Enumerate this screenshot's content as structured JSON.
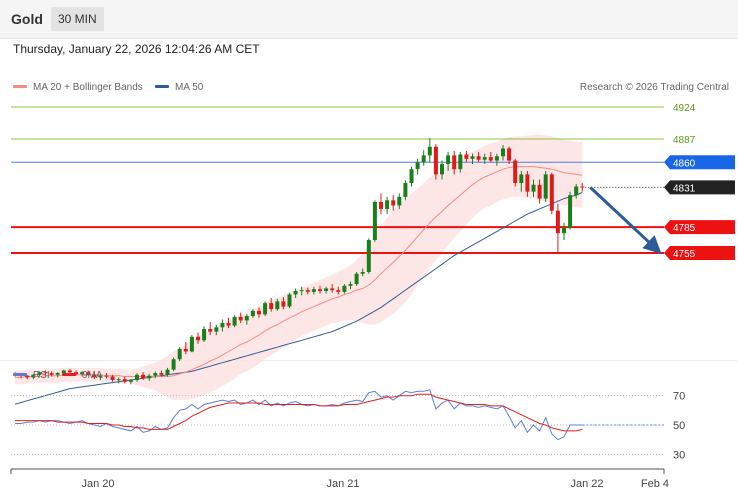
{
  "header": {
    "symbol": "Gold",
    "timeframe": "30 MIN"
  },
  "timestamp": "Thursday, January 22, 2026 12:04:26 AM CET",
  "legend": {
    "ma20": {
      "label": "MA 20 + Bollinger Bands",
      "color": "#f28b82"
    },
    "ma50": {
      "label": "MA 50",
      "color": "#2d5c9a"
    },
    "rsi": {
      "label": "RSI",
      "color": "#5b7fd6"
    },
    "rsi_ma": {
      "label": "9MA",
      "color": "#e02020"
    }
  },
  "copyright": "Research © 2026 Trading Central",
  "chart_data": [
    {
      "type": "candlestick",
      "title": "Gold",
      "timeframe": "30 MIN",
      "x_ticks": [
        "Jan 20",
        "Jan 21",
        "Jan 22",
        "Feb 4"
      ],
      "price_range": [
        4572,
        4935
      ],
      "last_price": 4831,
      "candles": [
        [
          4615,
          4617,
          4612,
          4614
        ],
        [
          4614,
          4616,
          4610,
          4613
        ],
        [
          4613,
          4614,
          4609,
          4611
        ],
        [
          4611,
          4615,
          4609,
          4614
        ],
        [
          4614,
          4618,
          4612,
          4617
        ],
        [
          4617,
          4619,
          4614,
          4616
        ],
        [
          4616,
          4618,
          4612,
          4614
        ],
        [
          4614,
          4617,
          4611,
          4616
        ],
        [
          4616,
          4620,
          4615,
          4619
        ],
        [
          4619,
          4621,
          4615,
          4617
        ],
        [
          4617,
          4619,
          4613,
          4615
        ],
        [
          4615,
          4618,
          4612,
          4617
        ],
        [
          4617,
          4619,
          4613,
          4614
        ],
        [
          4614,
          4616,
          4609,
          4611
        ],
        [
          4611,
          4614,
          4608,
          4613
        ],
        [
          4613,
          4616,
          4610,
          4612
        ],
        [
          4612,
          4614,
          4606,
          4608
        ],
        [
          4608,
          4611,
          4604,
          4609
        ],
        [
          4609,
          4612,
          4604,
          4606
        ],
        [
          4606,
          4609,
          4603,
          4608
        ],
        [
          4608,
          4616,
          4606,
          4614
        ],
        [
          4614,
          4617,
          4608,
          4610
        ],
        [
          4610,
          4615,
          4607,
          4613
        ],
        [
          4613,
          4618,
          4610,
          4616
        ],
        [
          4616,
          4619,
          4612,
          4614
        ],
        [
          4614,
          4622,
          4612,
          4620
        ],
        [
          4620,
          4634,
          4618,
          4632
        ],
        [
          4632,
          4646,
          4630,
          4644
        ],
        [
          4644,
          4652,
          4638,
          4641
        ],
        [
          4641,
          4660,
          4640,
          4658
        ],
        [
          4658,
          4663,
          4650,
          4654
        ],
        [
          4654,
          4670,
          4652,
          4667
        ],
        [
          4667,
          4675,
          4660,
          4664
        ],
        [
          4664,
          4672,
          4660,
          4669
        ],
        [
          4669,
          4678,
          4664,
          4674
        ],
        [
          4674,
          4680,
          4668,
          4671
        ],
        [
          4671,
          4683,
          4669,
          4681
        ],
        [
          4681,
          4686,
          4674,
          4677
        ],
        [
          4677,
          4684,
          4672,
          4682
        ],
        [
          4682,
          4690,
          4680,
          4688
        ],
        [
          4688,
          4692,
          4680,
          4684
        ],
        [
          4684,
          4699,
          4682,
          4697
        ],
        [
          4697,
          4703,
          4687,
          4690
        ],
        [
          4690,
          4702,
          4688,
          4699
        ],
        [
          4699,
          4704,
          4690,
          4693
        ],
        [
          4693,
          4709,
          4691,
          4707
        ],
        [
          4707,
          4714,
          4703,
          4711
        ],
        [
          4711,
          4716,
          4706,
          4712
        ],
        [
          4712,
          4715,
          4707,
          4710
        ],
        [
          4710,
          4716,
          4707,
          4713
        ],
        [
          4713,
          4717,
          4708,
          4711
        ],
        [
          4711,
          4716,
          4708,
          4714
        ],
        [
          4714,
          4719,
          4709,
          4712
        ],
        [
          4712,
          4716,
          4707,
          4710
        ],
        [
          4710,
          4719,
          4708,
          4717
        ],
        [
          4717,
          4722,
          4713,
          4719
        ],
        [
          4719,
          4733,
          4717,
          4731
        ],
        [
          4731,
          4737,
          4728,
          4733
        ],
        [
          4733,
          4772,
          4731,
          4770
        ],
        [
          4770,
          4816,
          4768,
          4814
        ],
        [
          4814,
          4824,
          4800,
          4806
        ],
        [
          4806,
          4820,
          4800,
          4816
        ],
        [
          4816,
          4822,
          4804,
          4810
        ],
        [
          4810,
          4824,
          4806,
          4820
        ],
        [
          4820,
          4839,
          4816,
          4836
        ],
        [
          4836,
          4855,
          4832,
          4852
        ],
        [
          4852,
          4864,
          4846,
          4860
        ],
        [
          4860,
          4874,
          4856,
          4868
        ],
        [
          4868,
          4888,
          4860,
          4878
        ],
        [
          4878,
          4881,
          4840,
          4846
        ],
        [
          4846,
          4862,
          4840,
          4858
        ],
        [
          4858,
          4872,
          4850,
          4868
        ],
        [
          4868,
          4873,
          4846,
          4852
        ],
        [
          4852,
          4872,
          4848,
          4869
        ],
        [
          4869,
          4873,
          4860,
          4864
        ],
        [
          4864,
          4870,
          4858,
          4867
        ],
        [
          4867,
          4872,
          4860,
          4863
        ],
        [
          4863,
          4870,
          4858,
          4866
        ],
        [
          4866,
          4872,
          4860,
          4862
        ],
        [
          4862,
          4870,
          4856,
          4867
        ],
        [
          4867,
          4880,
          4862,
          4876
        ],
        [
          4876,
          4878,
          4858,
          4862
        ],
        [
          4862,
          4864,
          4832,
          4836
        ],
        [
          4836,
          4850,
          4826,
          4846
        ],
        [
          4846,
          4850,
          4820,
          4826
        ],
        [
          4826,
          4840,
          4820,
          4834
        ],
        [
          4834,
          4840,
          4812,
          4818
        ],
        [
          4818,
          4850,
          4814,
          4846
        ],
        [
          4846,
          4848,
          4800,
          4804
        ],
        [
          4804,
          4812,
          4756,
          4778
        ],
        [
          4778,
          4790,
          4770,
          4784
        ],
        [
          4784,
          4826,
          4782,
          4822
        ],
        [
          4822,
          4835,
          4818,
          4832
        ],
        [
          4832,
          4836,
          4826,
          4831
        ]
      ],
      "ma20": [
        4611,
        4611,
        4612,
        4612,
        4612,
        4613,
        4613,
        4613,
        4614,
        4614,
        4614,
        4614,
        4614,
        4614,
        4614,
        4613,
        4613,
        4613,
        4612,
        4612,
        4612,
        4612,
        4612,
        4612,
        4612,
        4612,
        4613,
        4615,
        4617,
        4620,
        4623,
        4626,
        4630,
        4633,
        4637,
        4641,
        4645,
        4649,
        4652,
        4656,
        4660,
        4665,
        4669,
        4672,
        4676,
        4680,
        4683,
        4687,
        4690,
        4693,
        4696,
        4699,
        4702,
        4704,
        4707,
        4709,
        4712,
        4714,
        4718,
        4724,
        4731,
        4738,
        4744,
        4751,
        4758,
        4766,
        4774,
        4782,
        4790,
        4797,
        4803,
        4810,
        4816,
        4822,
        4828,
        4834,
        4839,
        4843,
        4846,
        4849,
        4852,
        4854,
        4855,
        4855,
        4855,
        4855,
        4854,
        4853,
        4852,
        4850,
        4848,
        4847,
        4846,
        4845
      ],
      "ma50": [
        4580,
        4582,
        4584,
        4586,
        4588,
        4590,
        4592,
        4594,
        4596,
        4598,
        4599,
        4600,
        4601,
        4602,
        4603,
        4604,
        4605,
        4606,
        4607,
        4608,
        4609,
        4610,
        4611,
        4612,
        4613,
        4614,
        4615,
        4616,
        4617,
        4618,
        4620,
        4622,
        4624,
        4626,
        4628,
        4630,
        4632,
        4634,
        4636,
        4638,
        4640,
        4642,
        4644,
        4646,
        4648,
        4650,
        4652,
        4654,
        4656,
        4658,
        4660,
        4662,
        4664,
        4667,
        4670,
        4673,
        4676,
        4680,
        4684,
        4688,
        4692,
        4697,
        4702,
        4707,
        4712,
        4717,
        4722,
        4727,
        4732,
        4737,
        4742,
        4747,
        4752,
        4756,
        4760,
        4764,
        4768,
        4772,
        4776,
        4780,
        4784,
        4788,
        4792,
        4796,
        4800,
        4803,
        4806,
        4809,
        4812,
        4815,
        4818,
        4820,
        4822,
        4825
      ],
      "bollinger_band_half_width": [
        8,
        8,
        8,
        8,
        8,
        8,
        8,
        8,
        8,
        8,
        8,
        8,
        8,
        8,
        8,
        8,
        8,
        8,
        8,
        8,
        10,
        12,
        14,
        16,
        20,
        24,
        28,
        30,
        32,
        34,
        35,
        36,
        36,
        36,
        36,
        36,
        35,
        34,
        34,
        34,
        33,
        32,
        32,
        31,
        30,
        30,
        29,
        28,
        28,
        28,
        28,
        28,
        28,
        29,
        30,
        32,
        35,
        40,
        46,
        52,
        56,
        58,
        60,
        60,
        60,
        58,
        56,
        54,
        52,
        50,
        48,
        46,
        44,
        42,
        40,
        38,
        37,
        36,
        36,
        35,
        35,
        35,
        35,
        35,
        36,
        37,
        38,
        38,
        38,
        38,
        38,
        38,
        38,
        38
      ],
      "horizontal_levels": [
        {
          "value": 4924,
          "label": "4924",
          "style": "target"
        },
        {
          "value": 4887,
          "label": "4887",
          "style": "target"
        },
        {
          "value": 4860,
          "label": "4860",
          "style": "pivot"
        },
        {
          "value": 4785,
          "label": "4785",
          "style": "support"
        },
        {
          "value": 4755,
          "label": "4755",
          "style": "support"
        }
      ],
      "projection": {
        "from": 4831,
        "to": 4761,
        "direction": "down"
      }
    },
    {
      "type": "line",
      "title": "RSI",
      "y_ticks": [
        30,
        50,
        70
      ],
      "ylim": [
        20,
        80
      ],
      "series": [
        {
          "name": "RSI",
          "values": [
            51,
            51,
            52,
            52,
            53,
            52,
            53,
            53,
            52,
            51,
            52,
            53,
            51,
            50,
            49,
            51,
            49,
            48,
            47,
            46,
            49,
            45,
            46,
            49,
            47,
            48,
            55,
            60,
            61,
            64,
            61,
            64,
            65,
            66,
            67,
            66,
            67,
            64,
            65,
            67,
            64,
            67,
            63,
            65,
            63,
            65,
            66,
            64,
            63,
            64,
            63,
            63,
            64,
            63,
            65,
            66,
            67,
            66,
            72,
            73,
            69,
            70,
            67,
            70,
            73,
            72,
            73,
            73,
            74,
            61,
            65,
            67,
            61,
            65,
            63,
            63,
            62,
            63,
            62,
            61,
            63,
            56,
            48,
            53,
            45,
            50,
            46,
            55,
            44,
            40,
            42,
            50,
            50,
            50
          ]
        },
        {
          "name": "9MA",
          "values": [
            53,
            53,
            53,
            53,
            53,
            53,
            53,
            52,
            52,
            52,
            52,
            52,
            51,
            51,
            51,
            51,
            50,
            50,
            49,
            49,
            48,
            48,
            47,
            47,
            47,
            47,
            49,
            51,
            53,
            56,
            58,
            60,
            62,
            63,
            64,
            65,
            65,
            65,
            65,
            65,
            65,
            64,
            64,
            64,
            64,
            64,
            64,
            64,
            64,
            64,
            63,
            63,
            63,
            63,
            64,
            64,
            64,
            65,
            66,
            67,
            68,
            69,
            69,
            70,
            70,
            70,
            71,
            71,
            71,
            69,
            68,
            67,
            66,
            65,
            64,
            64,
            64,
            64,
            63,
            63,
            63,
            61,
            59,
            57,
            55,
            53,
            51,
            50,
            48,
            47,
            46,
            46,
            46,
            47
          ]
        }
      ]
    }
  ]
}
